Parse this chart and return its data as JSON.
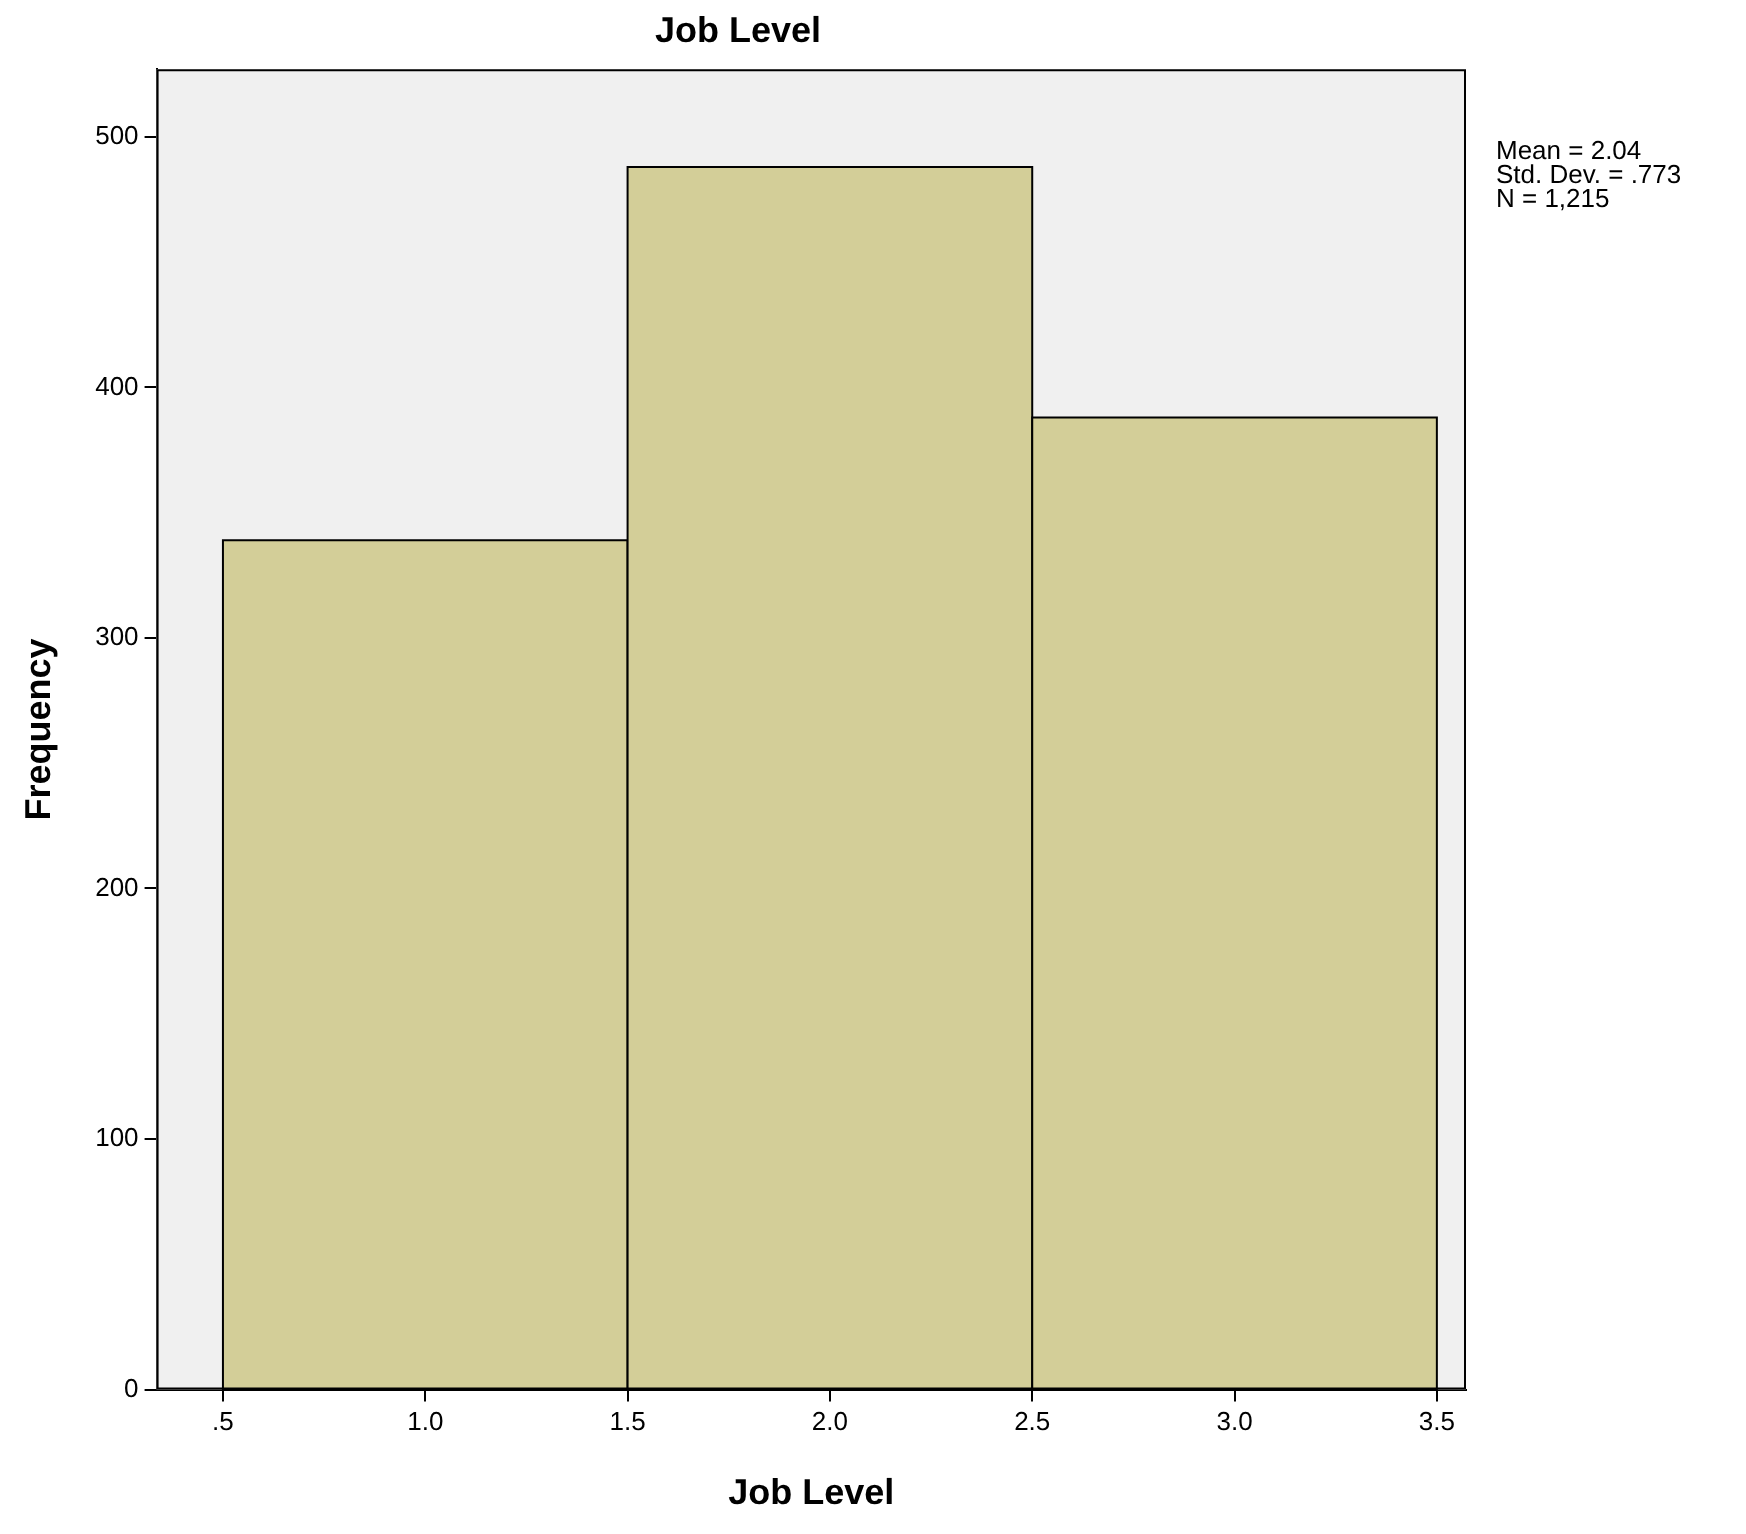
{
  "chart_data": {
    "type": "histogram",
    "title": "Job Level",
    "xlabel": "Job Level",
    "ylabel": "Frequency",
    "bins": [
      0.5,
      1.5,
      2.5,
      3.5
    ],
    "values": [
      339,
      488,
      388
    ],
    "color": "#d3ce98",
    "xlim": [
      0.336,
      3.572
    ],
    "xticks": [
      {
        "value": 0.5,
        "label": ".5"
      },
      {
        "value": 1,
        "label": "1.0"
      },
      {
        "value": 1.5,
        "label": "1.5"
      },
      {
        "value": 2,
        "label": "2.0"
      },
      {
        "value": 2.5,
        "label": "2.5"
      },
      {
        "value": 3,
        "label": "3.0"
      },
      {
        "value": 3.5,
        "label": "3.5"
      }
    ],
    "ylim": [
      0,
      527
    ],
    "yticks": [
      0,
      100,
      200,
      300,
      400,
      500
    ],
    "grid": false,
    "annotations": [
      "Mean = 2.04",
      "Std. Dev. = .773",
      "N = 1,215"
    ]
  }
}
